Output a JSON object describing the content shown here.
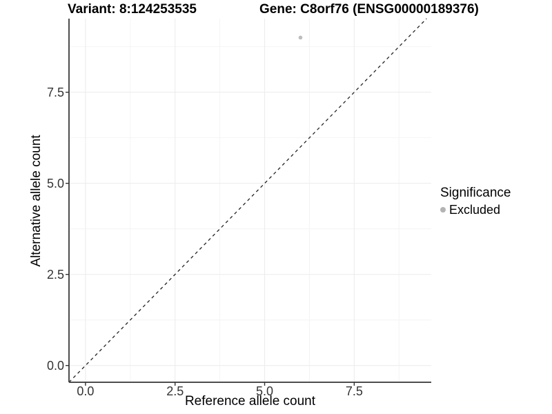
{
  "chart_data": {
    "type": "scatter",
    "title_left": "Variant: 8:124253535",
    "title_right": "Gene: C8orf76 (ENSG00000189376)",
    "xlabel": "Reference allele count",
    "ylabel": "Alternative allele count",
    "xlim": [
      -0.46,
      9.65
    ],
    "ylim": [
      -0.46,
      9.52
    ],
    "x_ticks": {
      "values": [
        0,
        2.5,
        5,
        7.5
      ],
      "labels": [
        "0.0",
        "2.5",
        "5.0",
        "7.5"
      ]
    },
    "y_ticks": {
      "values": [
        0,
        2.5,
        5,
        7.5
      ],
      "labels": [
        "0.0",
        "2.5",
        "5.0",
        "7.5"
      ]
    },
    "x_minor_ticks": [
      1.25,
      3.75,
      6.25,
      8.75
    ],
    "y_minor_ticks": [
      1.25,
      3.75,
      6.25,
      8.75
    ],
    "grid": true,
    "series": [
      {
        "name": "Excluded",
        "color": "#bdbdbd",
        "marker": "circle",
        "points": [
          {
            "x": 6,
            "y": 9
          }
        ]
      }
    ],
    "reference_line": {
      "equation": "y = x",
      "style": "dashed",
      "color": "#222222"
    },
    "legend": {
      "title": "Significance",
      "position": "right",
      "items": [
        {
          "label": "Excluded",
          "color": "#b3b3b3",
          "marker": "circle"
        }
      ]
    }
  },
  "colors": {
    "background": "#ffffff",
    "grid_major": "#ebebeb",
    "grid_minor": "#f4f4f4",
    "axis_line": "#4d4d4d",
    "tick_mark": "#333333",
    "tick_label": "#333333"
  }
}
